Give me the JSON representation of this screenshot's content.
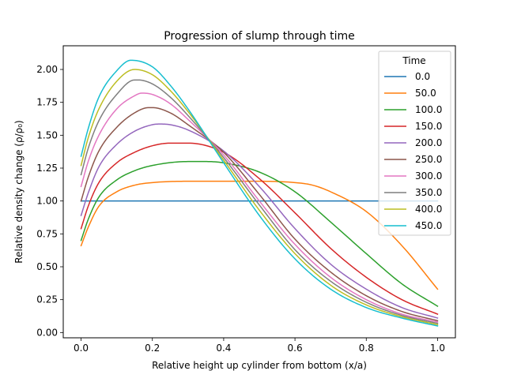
{
  "chart_data": {
    "type": "line",
    "title": "Progression of slump through time",
    "xlabel": "Relative height up cylinder from bottom (x/a)",
    "ylabel": "Relative density change (ρ/ρ₀)",
    "xlim": [
      -0.05,
      1.05
    ],
    "ylim": [
      -0.04,
      2.18
    ],
    "xticks": [
      0.0,
      0.2,
      0.4,
      0.6,
      0.8,
      1.0
    ],
    "xtick_labels": [
      "0.0",
      "0.2",
      "0.4",
      "0.6",
      "0.8",
      "1.0"
    ],
    "yticks": [
      0.0,
      0.25,
      0.5,
      0.75,
      1.0,
      1.25,
      1.5,
      1.75,
      2.0
    ],
    "ytick_labels": [
      "0.00",
      "0.25",
      "0.50",
      "0.75",
      "1.00",
      "1.25",
      "1.50",
      "1.75",
      "2.00"
    ],
    "grid": false,
    "legend": {
      "title": "Time",
      "position": "top-right"
    },
    "series": [
      {
        "name": "0.0",
        "color": "#1f77b4",
        "x": [
          0,
          1
        ],
        "y": [
          1.0,
          1.0
        ]
      },
      {
        "name": "50.0",
        "color": "#ff7f0e",
        "x": [
          0,
          0.02,
          0.05,
          0.1,
          0.15,
          0.2,
          0.3,
          0.4,
          0.5,
          0.6,
          0.65,
          0.7,
          0.8,
          0.9,
          1.0
        ],
        "y": [
          0.66,
          0.8,
          0.96,
          1.07,
          1.12,
          1.14,
          1.15,
          1.15,
          1.15,
          1.14,
          1.12,
          1.07,
          0.92,
          0.66,
          0.33
        ]
      },
      {
        "name": "100.0",
        "color": "#2ca02c",
        "x": [
          0,
          0.02,
          0.05,
          0.1,
          0.15,
          0.2,
          0.3,
          0.35,
          0.4,
          0.5,
          0.6,
          0.7,
          0.8,
          0.9,
          1.0
        ],
        "y": [
          0.7,
          0.86,
          1.03,
          1.16,
          1.23,
          1.27,
          1.3,
          1.3,
          1.29,
          1.22,
          1.07,
          0.84,
          0.6,
          0.37,
          0.2
        ]
      },
      {
        "name": "150.0",
        "color": "#d62728",
        "x": [
          0,
          0.02,
          0.05,
          0.1,
          0.15,
          0.2,
          0.25,
          0.3,
          0.4,
          0.5,
          0.6,
          0.7,
          0.8,
          0.9,
          1.0
        ],
        "y": [
          0.79,
          0.96,
          1.14,
          1.29,
          1.37,
          1.42,
          1.44,
          1.44,
          1.37,
          1.17,
          0.91,
          0.64,
          0.42,
          0.25,
          0.14
        ]
      },
      {
        "name": "200.0",
        "color": "#9467bd",
        "x": [
          0,
          0.02,
          0.05,
          0.1,
          0.15,
          0.2,
          0.22,
          0.25,
          0.3,
          0.4,
          0.5,
          0.6,
          0.7,
          0.8,
          0.9,
          1.0
        ],
        "y": [
          0.89,
          1.06,
          1.26,
          1.43,
          1.53,
          1.58,
          1.585,
          1.58,
          1.54,
          1.38,
          1.11,
          0.79,
          0.52,
          0.33,
          0.19,
          0.11
        ]
      },
      {
        "name": "250.0",
        "color": "#8c564b",
        "x": [
          0,
          0.02,
          0.05,
          0.1,
          0.15,
          0.19,
          0.2,
          0.25,
          0.3,
          0.4,
          0.5,
          0.6,
          0.7,
          0.8,
          0.9,
          1.0
        ],
        "y": [
          1.0,
          1.18,
          1.38,
          1.56,
          1.67,
          1.71,
          1.71,
          1.67,
          1.58,
          1.37,
          1.05,
          0.71,
          0.46,
          0.28,
          0.16,
          0.09
        ]
      },
      {
        "name": "300.0",
        "color": "#e377c2",
        "x": [
          0,
          0.02,
          0.05,
          0.1,
          0.15,
          0.17,
          0.2,
          0.25,
          0.3,
          0.4,
          0.5,
          0.6,
          0.7,
          0.8,
          0.9,
          1.0
        ],
        "y": [
          1.11,
          1.3,
          1.5,
          1.7,
          1.8,
          1.82,
          1.81,
          1.74,
          1.62,
          1.35,
          1.0,
          0.67,
          0.42,
          0.25,
          0.14,
          0.08
        ]
      },
      {
        "name": "350.0",
        "color": "#7f7f7f",
        "x": [
          0,
          0.02,
          0.05,
          0.1,
          0.15,
          0.16,
          0.2,
          0.25,
          0.3,
          0.4,
          0.5,
          0.6,
          0.7,
          0.8,
          0.9,
          1.0
        ],
        "y": [
          1.2,
          1.4,
          1.61,
          1.81,
          1.92,
          1.92,
          1.89,
          1.79,
          1.65,
          1.33,
          0.97,
          0.63,
          0.39,
          0.23,
          0.13,
          0.07
        ]
      },
      {
        "name": "400.0",
        "color": "#bcbd22",
        "x": [
          0,
          0.02,
          0.05,
          0.1,
          0.15,
          0.2,
          0.25,
          0.3,
          0.4,
          0.5,
          0.6,
          0.7,
          0.8,
          0.9,
          1.0
        ],
        "y": [
          1.27,
          1.48,
          1.7,
          1.91,
          2.0,
          1.96,
          1.84,
          1.68,
          1.31,
          0.93,
          0.6,
          0.36,
          0.21,
          0.12,
          0.06
        ]
      },
      {
        "name": "450.0",
        "color": "#17becf",
        "x": [
          0,
          0.02,
          0.05,
          0.1,
          0.14,
          0.2,
          0.25,
          0.3,
          0.4,
          0.5,
          0.6,
          0.7,
          0.8,
          0.9,
          1.0
        ],
        "y": [
          1.34,
          1.55,
          1.79,
          1.99,
          2.07,
          2.02,
          1.88,
          1.7,
          1.29,
          0.89,
          0.56,
          0.33,
          0.19,
          0.11,
          0.05
        ]
      }
    ]
  }
}
